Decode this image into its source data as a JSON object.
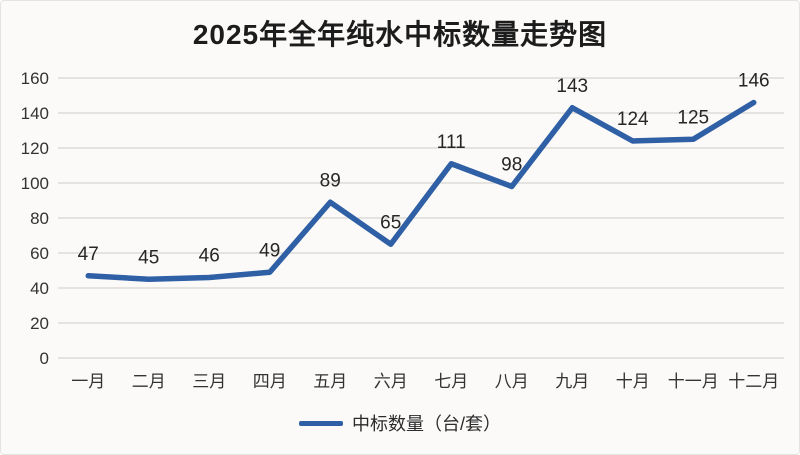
{
  "title": "2025年全年纯水中标数量走势图",
  "legend": {
    "label": "中标数量（台/套）"
  },
  "colors": {
    "line": "#2f5fa5",
    "grid": "#dddbd8",
    "axis_text": "#333333",
    "data_label_text": "#262626",
    "title_text": "#1c1c1c",
    "background": "#fbfaf8"
  },
  "chart_data": {
    "type": "line",
    "title": "2025年全年纯水中标数量走势图",
    "categories": [
      "一月",
      "二月",
      "三月",
      "四月",
      "五月",
      "六月",
      "七月",
      "八月",
      "九月",
      "十月",
      "十一月",
      "十二月"
    ],
    "series": [
      {
        "name": "中标数量（台/套）",
        "values": [
          47,
          45,
          46,
          49,
          89,
          65,
          111,
          98,
          143,
          124,
          125,
          146
        ]
      }
    ],
    "xlabel": "",
    "ylabel": "",
    "ylim": [
      0,
      160
    ],
    "ytick_step": 20,
    "yticks": [
      0,
      20,
      40,
      60,
      80,
      100,
      120,
      140,
      160
    ],
    "grid": true,
    "data_labels": true,
    "legend_position": "bottom"
  }
}
